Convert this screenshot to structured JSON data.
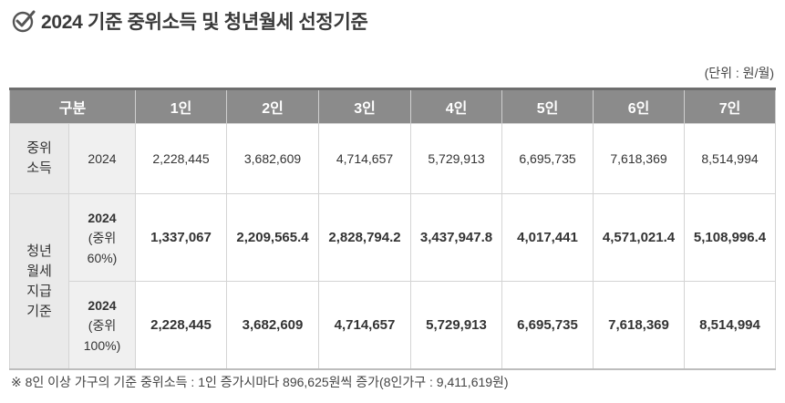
{
  "title": "2024 기준 중위소득 및 청년월세 선정기준",
  "unit": "(단위 : 원/월)",
  "table": {
    "headers": [
      "구분",
      "1인",
      "2인",
      "3인",
      "4인",
      "5인",
      "6인",
      "7인"
    ],
    "rows": [
      {
        "category": "중위\n소득",
        "sub": "2024",
        "sub_paren": "",
        "values": [
          "2,228,445",
          "3,682,609",
          "4,714,657",
          "5,729,913",
          "6,695,735",
          "7,618,369",
          "8,514,994"
        ]
      },
      {
        "category": "청년\n월세\n지급\n기준",
        "sub": "2024",
        "sub_paren": "(중위\n60%)",
        "values": [
          "1,337,067",
          "2,209,565.4",
          "2,828,794.2",
          "3,437,947.8",
          "4,017,441",
          "4,571,021.4",
          "5,108,996.4"
        ]
      },
      {
        "category": "",
        "sub": "2024",
        "sub_paren": "(중위\n100%)",
        "values": [
          "2,228,445",
          "3,682,609",
          "4,714,657",
          "5,729,913",
          "6,695,735",
          "7,618,369",
          "8,514,994"
        ]
      }
    ]
  },
  "note": "※ 8인 이상 가구의 기준 중위소득 : 1인 증가시마다 896,625원씩 증가(8인가구 : 9,411,619원)"
}
